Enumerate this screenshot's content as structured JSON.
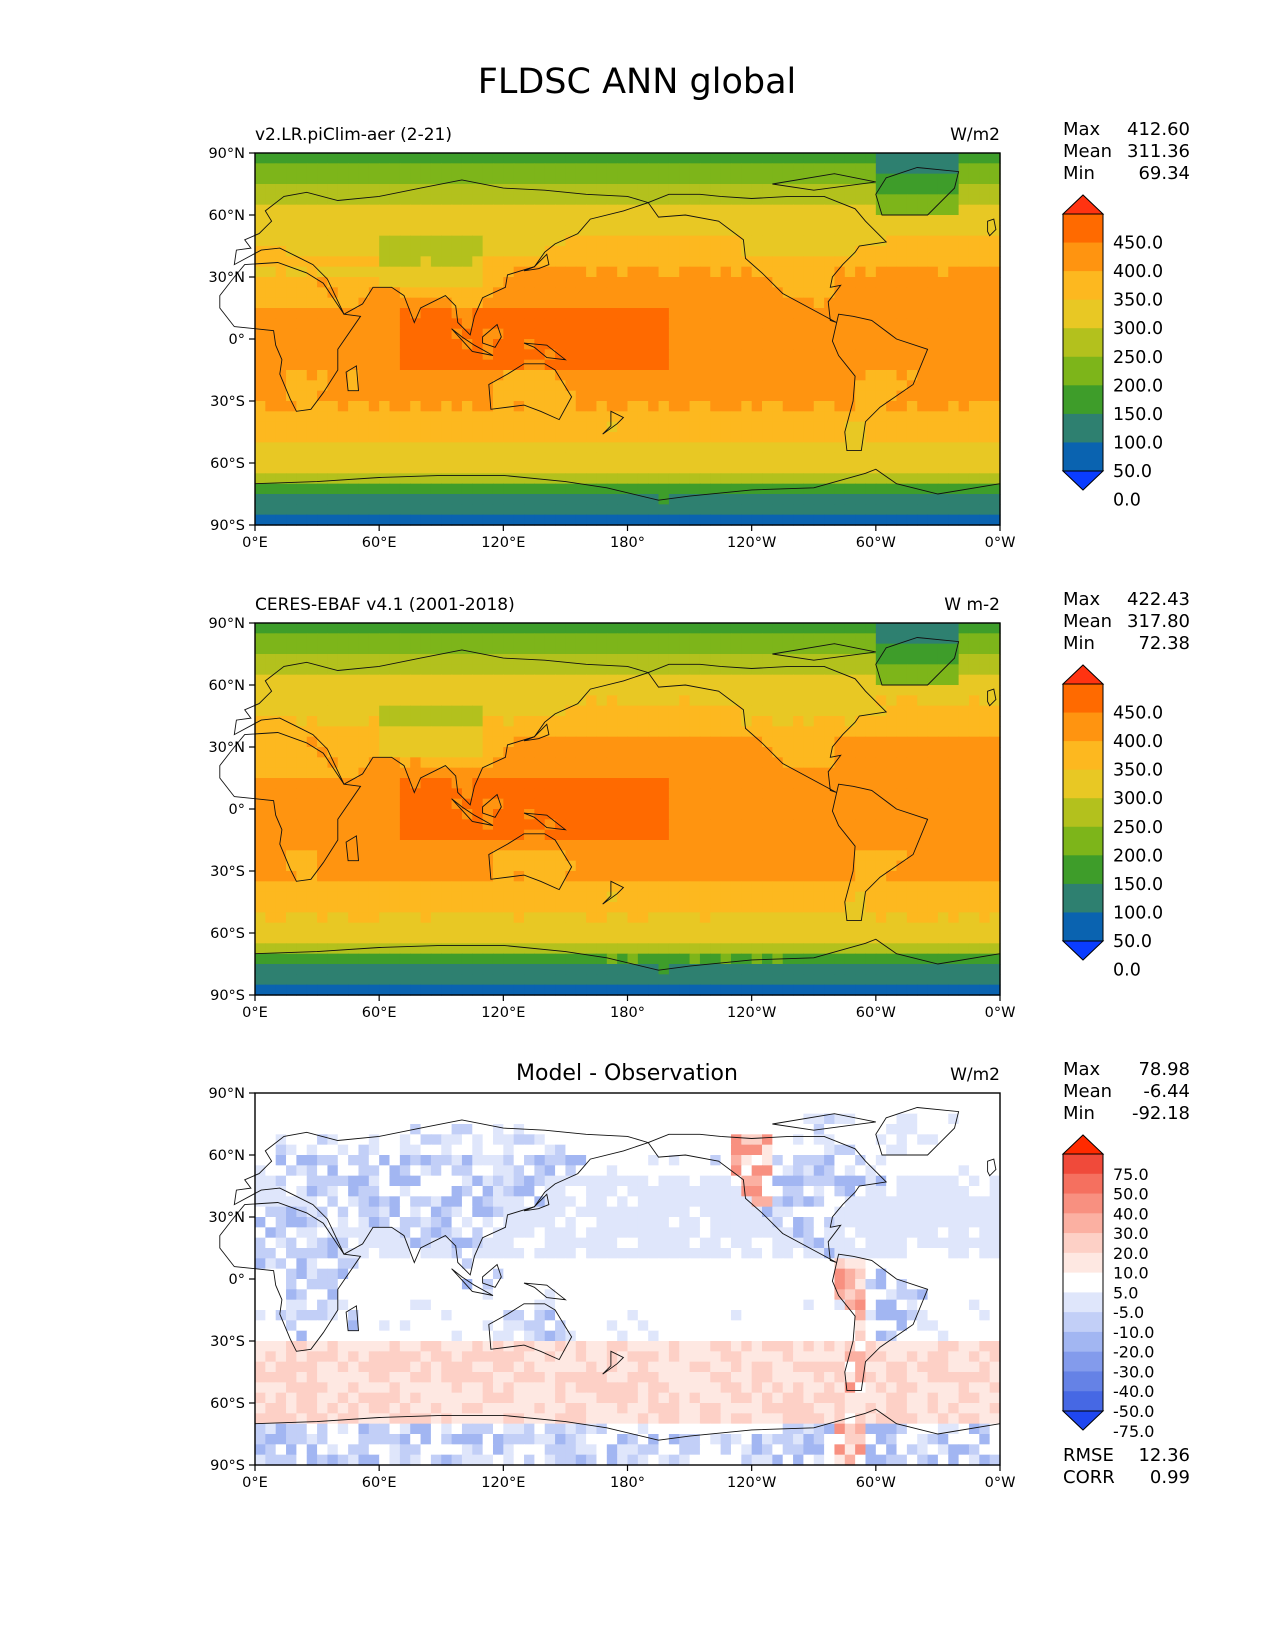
{
  "title": "FLDSC ANN global",
  "lat_ticks": [
    "90°N",
    "60°N",
    "30°N",
    "0°",
    "30°S",
    "60°S",
    "90°S"
  ],
  "lon_ticks": [
    "0°E",
    "60°E",
    "120°E",
    "180°",
    "120°W",
    "60°W",
    "0°W"
  ],
  "stat_labels": {
    "max": "Max",
    "mean": "Mean",
    "min": "Min",
    "rmse": "RMSE",
    "corr": "CORR"
  },
  "panels": [
    {
      "id": "model",
      "left_title": "v2.LR.piClim-aer (2-21)",
      "center_title": "",
      "units": "W/m2",
      "stats": {
        "max": "412.60",
        "mean": "311.36",
        "min": "69.34"
      },
      "colorbar": {
        "labels": [
          "450.0",
          "400.0",
          "350.0",
          "300.0",
          "250.0",
          "200.0",
          "150.0",
          "100.0",
          "50.0",
          "0.0"
        ],
        "colors": [
          "#ff3311",
          "#ff6a00",
          "#ff9410",
          "#fdb81f",
          "#e8c824",
          "#b3c11d",
          "#7db51a",
          "#3e9d2a",
          "#2e8070",
          "#0a63b0",
          "#0a3dff"
        ]
      },
      "field": "absolute"
    },
    {
      "id": "obs",
      "left_title": "CERES-EBAF v4.1 (2001-2018)",
      "center_title": "",
      "units": "W m-2",
      "stats": {
        "max": "422.43",
        "mean": "317.80",
        "min": "72.38"
      },
      "colorbar": {
        "labels": [
          "450.0",
          "400.0",
          "350.0",
          "300.0",
          "250.0",
          "200.0",
          "150.0",
          "100.0",
          "50.0",
          "0.0"
        ],
        "colors": [
          "#ff3311",
          "#ff6a00",
          "#ff9410",
          "#fdb81f",
          "#e8c824",
          "#b3c11d",
          "#7db51a",
          "#3e9d2a",
          "#2e8070",
          "#0a63b0",
          "#0a3dff"
        ]
      },
      "field": "absolute"
    },
    {
      "id": "diff",
      "left_title": "",
      "center_title": "Model - Observation",
      "units": "W/m2",
      "stats": {
        "max": "78.98",
        "mean": "-6.44",
        "min": "-92.18"
      },
      "metrics": {
        "rmse": "12.36",
        "corr": "0.99"
      },
      "colorbar": {
        "labels": [
          "75.0",
          "50.0",
          "40.0",
          "30.0",
          "20.0",
          "10.0",
          "5.0",
          "-5.0",
          "-10.0",
          "-20.0",
          "-30.0",
          "-40.0",
          "-50.0",
          "-75.0"
        ],
        "colors": [
          "#ff2a00",
          "#f04a3a",
          "#f5705f",
          "#f89080",
          "#fbb0a2",
          "#fdd0c6",
          "#fee8e2",
          "#ffffff",
          "#dfe6fb",
          "#c2cff7",
          "#a2b6f2",
          "#839bec",
          "#6582e6",
          "#4668e4",
          "#1f47f0"
        ]
      },
      "field": "difference"
    }
  ]
}
